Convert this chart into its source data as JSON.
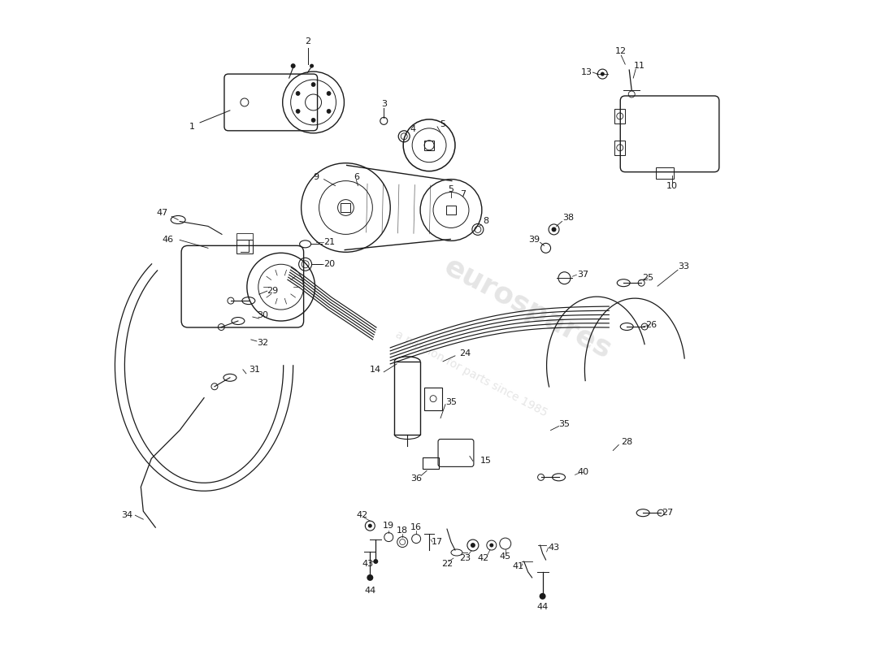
{
  "background_color": "#ffffff",
  "line_color": "#1a1a1a",
  "fig_width": 11.0,
  "fig_height": 8.0,
  "dpi": 100
}
